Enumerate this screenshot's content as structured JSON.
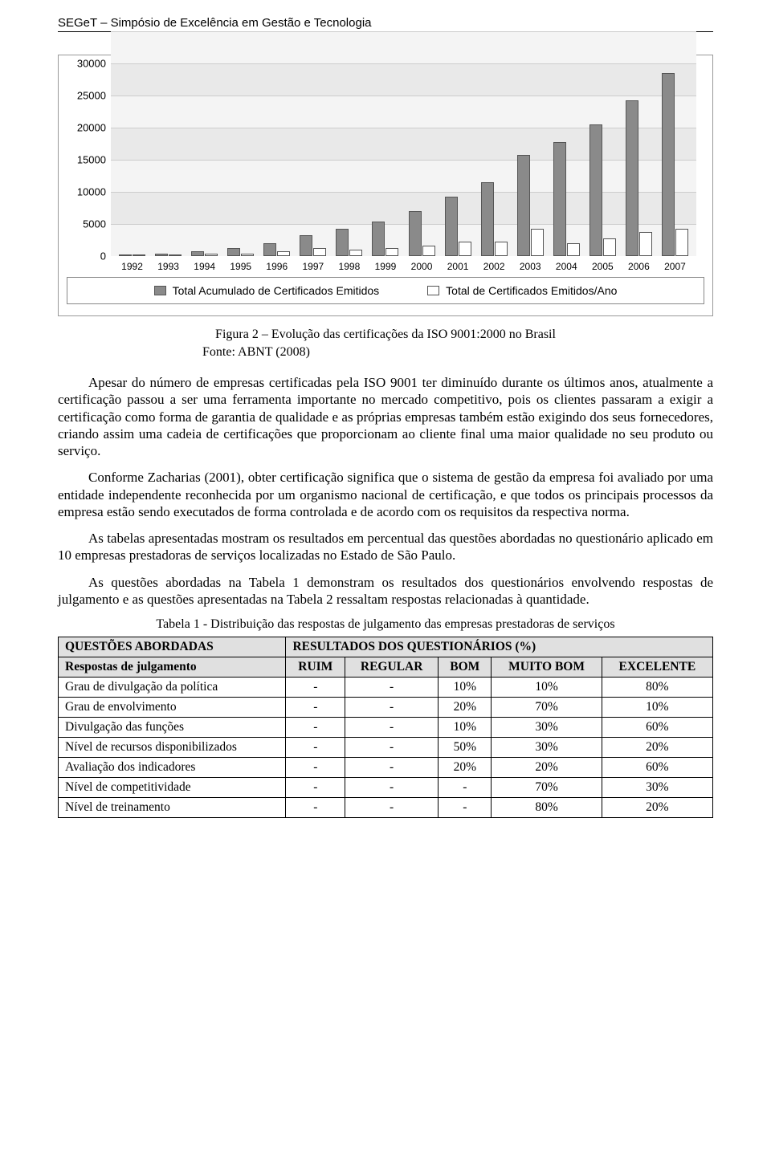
{
  "header": "SEGeT – Simpósio de Excelência em Gestão e Tecnologia",
  "chart": {
    "type": "bar",
    "ylim": [
      0,
      30000
    ],
    "ytick_step": 5000,
    "y_ticks": [
      0,
      5000,
      10000,
      15000,
      20000,
      25000,
      30000
    ],
    "categories": [
      "1992",
      "1993",
      "1994",
      "1995",
      "1996",
      "1997",
      "1998",
      "1999",
      "2000",
      "2001",
      "2002",
      "2003",
      "2004",
      "2005",
      "2006",
      "2007"
    ],
    "series_a": {
      "label": "Total Acumulado de Certificados Emitidos",
      "color": "#8a8a8a",
      "values": [
        150,
        400,
        800,
        1200,
        2000,
        3200,
        4200,
        5400,
        7000,
        9300,
        11500,
        15800,
        17800,
        20500,
        24200,
        28500
      ]
    },
    "series_b": {
      "label": "Total de Certificados Emitidos/Ano",
      "color": "#ffffff",
      "values": [
        150,
        250,
        400,
        400,
        800,
        1200,
        1000,
        1200,
        1600,
        2300,
        2200,
        4300,
        2000,
        2700,
        3700,
        4300
      ]
    },
    "axis_fontsize": 13,
    "background_color": "#ffffff",
    "grid_color": "#cccccc"
  },
  "figure_caption": "Figura 2 – Evolução das certificações da ISO 9001:2000 no Brasil",
  "figure_source": "Fonte: ABNT (2008)",
  "paragraphs": [
    "Apesar do número de empresas certificadas pela ISO 9001 ter diminuído durante os últimos anos, atualmente a certificação passou a ser uma ferramenta importante no mercado competitivo, pois os clientes passaram a exigir a certificação como forma de garantia de qualidade e as próprias empresas também estão exigindo dos seus fornecedores, criando assim uma cadeia de certificações que proporcionam ao cliente final uma maior qualidade no seu produto ou serviço.",
    "Conforme Zacharias (2001), obter certificação significa que o sistema de gestão da empresa foi avaliado por uma entidade independente reconhecida por um organismo nacional de certificação, e que todos os principais processos da empresa estão sendo executados de forma controlada e de acordo com os requisitos da respectiva norma.",
    "As tabelas apresentadas mostram os resultados em percentual das questões abordadas no questionário aplicado em 10 empresas prestadoras de serviços localizadas no Estado de São Paulo.",
    "As questões abordadas na Tabela 1 demonstram os resultados dos questionários envolvendo respostas de julgamento e as questões apresentadas na Tabela 2 ressaltam respostas relacionadas à quantidade."
  ],
  "table1": {
    "caption": "Tabela 1 - Distribuição das respostas de julgamento das empresas prestadoras de serviços",
    "header_left": "QUESTÕES ABORDADAS",
    "header_right": "RESULTADOS DOS QUESTIONÁRIOS (%)",
    "subheader_left": "Respostas de julgamento",
    "columns": [
      "RUIM",
      "REGULAR",
      "BOM",
      "MUITO BOM",
      "EXCELENTE"
    ],
    "rows": [
      {
        "label": "Grau de divulgação da política",
        "values": [
          "-",
          "-",
          "10%",
          "10%",
          "80%"
        ]
      },
      {
        "label": "Grau de envolvimento",
        "values": [
          "-",
          "-",
          "20%",
          "70%",
          "10%"
        ]
      },
      {
        "label": "Divulgação das funções",
        "values": [
          "-",
          "-",
          "10%",
          "30%",
          "60%"
        ]
      },
      {
        "label": "Nível de recursos disponibilizados",
        "values": [
          "-",
          "-",
          "50%",
          "30%",
          "20%"
        ]
      },
      {
        "label": "Avaliação dos indicadores",
        "values": [
          "-",
          "-",
          "20%",
          "20%",
          "60%"
        ]
      },
      {
        "label": "Nível de competitividade",
        "values": [
          "-",
          "-",
          "-",
          "70%",
          "30%"
        ]
      },
      {
        "label": "Nível de treinamento",
        "values": [
          "-",
          "-",
          "-",
          "80%",
          "20%"
        ]
      }
    ]
  }
}
